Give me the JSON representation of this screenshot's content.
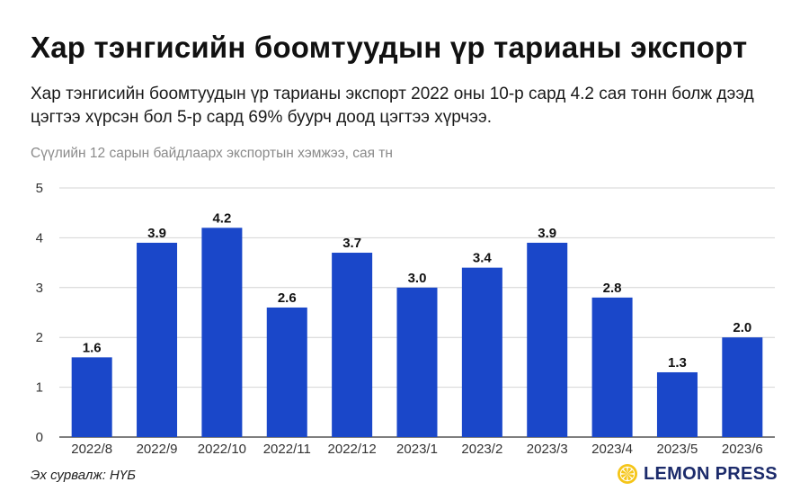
{
  "title": "Хар тэнгисийн боомтуудын үр тарианы экспорт",
  "subtitle": "Хар тэнгисийн боомтуудын үр тарианы экспорт 2022 оны 10-р сард 4.2 сая тонн болж дээд цэгтээ хүрсэн бол 5-р сард 69% буурч доод цэгтээ хүрчээ.",
  "source": "Эх сурвалж: НҮБ",
  "brand": {
    "name": "LEMON PRESS",
    "logo_icon": "lemon-slice-icon",
    "color": "#1c2b6b",
    "accent": "#f5c518"
  },
  "chart_data": {
    "type": "bar",
    "title": "",
    "ylabel": "Сүүлийн 12 сарын байдлаарх экспортын хэмжээ, сая тн",
    "xlabel": "",
    "categories": [
      "2022/8",
      "2022/9",
      "2022/10",
      "2022/11",
      "2022/12",
      "2023/1",
      "2023/2",
      "2023/3",
      "2023/4",
      "2023/5",
      "2023/6"
    ],
    "values": [
      1.6,
      3.9,
      4.2,
      2.6,
      3.7,
      3.0,
      3.4,
      3.9,
      2.8,
      1.3,
      2.0
    ],
    "value_labels": [
      "1.6",
      "3.9",
      "4.2",
      "2.6",
      "3.7",
      "3.0",
      "3.4",
      "3.9",
      "2.8",
      "1.3",
      "2.0"
    ],
    "ylim": [
      0,
      5
    ],
    "yticks": [
      "0",
      "1",
      "2",
      "3",
      "4",
      "5"
    ],
    "grid": true,
    "bar_color": "#1a47c9"
  }
}
